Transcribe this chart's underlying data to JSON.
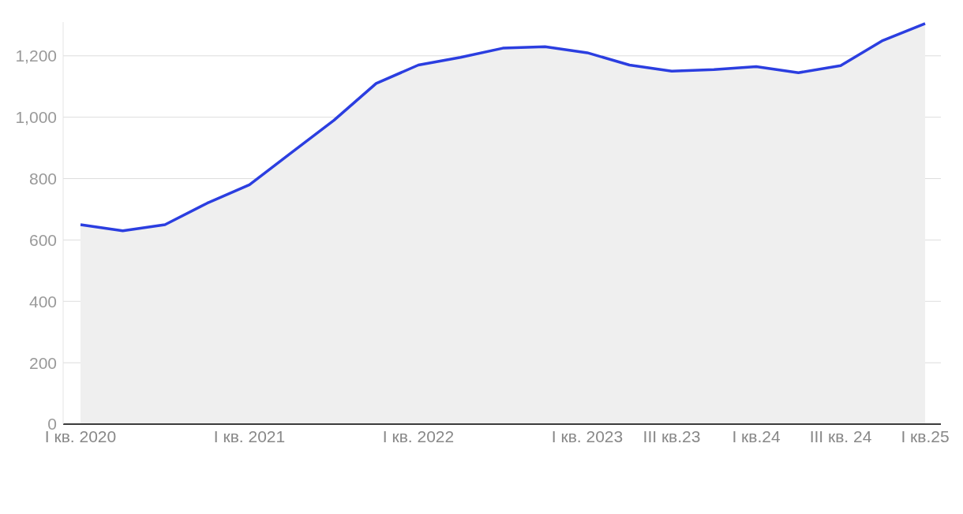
{
  "chart_data": {
    "type": "area",
    "categories": [
      "I кв. 2020",
      null,
      null,
      null,
      "I кв. 2021",
      null,
      null,
      null,
      "I кв. 2022",
      null,
      null,
      null,
      "I кв. 2023",
      null,
      "III кв.23",
      null,
      "I кв.24",
      null,
      "III кв. 24",
      null,
      "I кв.25"
    ],
    "series": [
      {
        "color": "#2b3ee0",
        "values": [
          650,
          630,
          650,
          720,
          780,
          885,
          990,
          1110,
          1170,
          1195,
          1225,
          1230,
          1210,
          1170,
          1150,
          1155,
          1165,
          1145,
          1168,
          1250,
          1305
        ]
      }
    ],
    "ylim": [
      0,
      1310
    ],
    "yticks": [
      0,
      200,
      400,
      600,
      800,
      {
        "value": 1000,
        "label": "1,000"
      },
      {
        "value": 1200,
        "label": "1,200"
      }
    ],
    "grid": "y",
    "legend": false
  }
}
